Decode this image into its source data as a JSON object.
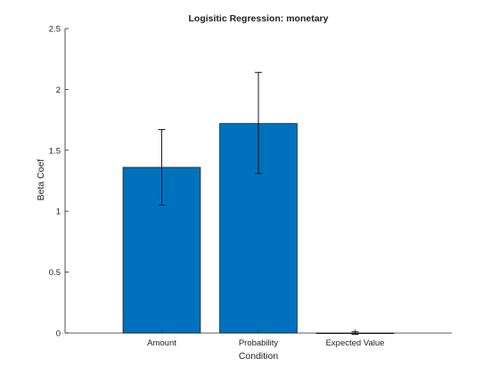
{
  "chart_data": {
    "type": "bar",
    "title": "Logisitic Regression: monetary",
    "xlabel": "Condition",
    "ylabel": "Beta Coef",
    "categories": [
      "Amount",
      "Probability",
      "Expected Value"
    ],
    "values": [
      1.36,
      1.72,
      0.0
    ],
    "error_low": [
      1.05,
      1.31,
      -0.01
    ],
    "error_high": [
      1.67,
      2.14,
      0.01
    ],
    "ylim": [
      0,
      2.5
    ],
    "yticks": [
      0,
      0.5,
      1,
      1.5,
      2,
      2.5
    ],
    "ytick_labels": [
      "0",
      "0.5",
      "1",
      "1.5",
      "2",
      "2.5"
    ],
    "xlim": [
      0,
      4
    ],
    "bar_color": "#0072BD",
    "grid": false,
    "legend": "none"
  }
}
